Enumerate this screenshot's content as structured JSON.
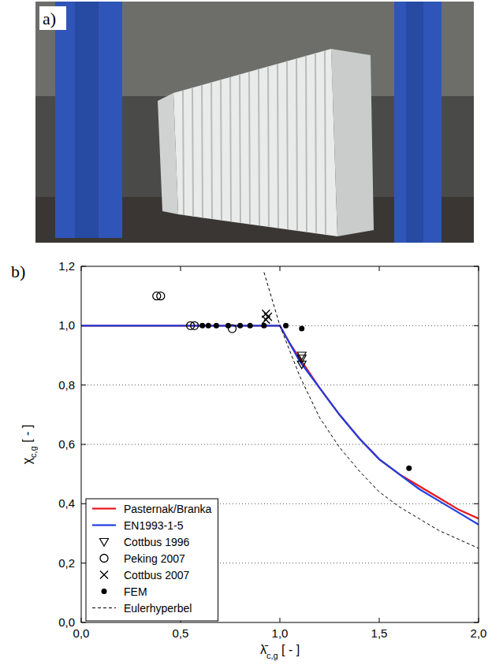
{
  "panel_labels": [
    "a)",
    "b)"
  ],
  "chart_data": {
    "type": "line",
    "xlabel": [
      "λ̄",
      "c,g",
      " [ - ]"
    ],
    "ylabel": [
      "χ",
      "c,g",
      " [ - ]"
    ],
    "xlim": [
      0,
      2
    ],
    "ylim": [
      0,
      1.2
    ],
    "xticks": [
      {
        "value": 0,
        "label": "0,0"
      },
      {
        "value": 0.5,
        "label": "0,5"
      },
      {
        "value": 1,
        "label": "1,0"
      },
      {
        "value": 1.5,
        "label": "1,5"
      },
      {
        "value": 2,
        "label": "2,0"
      }
    ],
    "yticks": [
      {
        "value": 0,
        "label": "0,0"
      },
      {
        "value": 0.2,
        "label": "0,2"
      },
      {
        "value": 0.4,
        "label": "0,4"
      },
      {
        "value": 0.6,
        "label": "0,6"
      },
      {
        "value": 0.8,
        "label": "0,8"
      },
      {
        "value": 1,
        "label": "1,0"
      },
      {
        "value": 1.2,
        "label": "1,2"
      }
    ],
    "grid": true,
    "legend": "lower left",
    "series": [
      {
        "name": "Pasternak/Branka",
        "type": "line",
        "color": "#e8141c",
        "line_style": "solid",
        "x": [
          0,
          1.0,
          1.05,
          1.1,
          1.2,
          1.3,
          1.4,
          1.5,
          1.6,
          1.7,
          1.8,
          1.9,
          2.0
        ],
        "values": [
          1,
          1,
          0.94,
          0.89,
          0.79,
          0.7,
          0.62,
          0.55,
          0.5,
          0.46,
          0.42,
          0.38,
          0.35
        ]
      },
      {
        "name": "EN1993-1-5",
        "type": "line",
        "color": "#1f3fe0",
        "line_style": "solid",
        "x": [
          0,
          1.0,
          1.05,
          1.1,
          1.2,
          1.3,
          1.4,
          1.5,
          1.6,
          1.7,
          1.8,
          1.9,
          2.0
        ],
        "values": [
          1,
          1,
          0.94,
          0.88,
          0.79,
          0.7,
          0.62,
          0.55,
          0.5,
          0.45,
          0.41,
          0.37,
          0.33
        ]
      },
      {
        "name": "Cottbus 1996",
        "type": "scatter",
        "color": "#000000",
        "marker": "triangle-down",
        "x": [
          1.11,
          1.11,
          1.11
        ],
        "values": [
          0.9,
          0.89,
          0.87
        ]
      },
      {
        "name": "Peking 2007",
        "type": "scatter",
        "color": "#000000",
        "marker": "circle",
        "x": [
          0.38,
          0.4,
          0.55,
          0.57,
          0.76
        ],
        "values": [
          1.1,
          1.1,
          1.0,
          1.0,
          0.99
        ]
      },
      {
        "name": "Cottbus 2007",
        "type": "scatter",
        "color": "#000000",
        "marker": "x",
        "x": [
          0.93,
          0.93,
          0.94
        ],
        "values": [
          1.04,
          1.02,
          1.03
        ]
      },
      {
        "name": "FEM",
        "type": "scatter",
        "color": "#000000",
        "marker": "dot",
        "x": [
          0.61,
          0.64,
          0.68,
          0.74,
          0.8,
          0.85,
          0.92,
          1.03,
          1.11,
          1.65
        ],
        "values": [
          1.0,
          1.0,
          1.0,
          1.0,
          1.0,
          1.0,
          1.0,
          1.0,
          0.99,
          0.52
        ]
      },
      {
        "name": "Eulerhyperbel",
        "type": "line",
        "color": "#000000",
        "line_style": "dashed",
        "x": [
          0.92,
          1.0,
          1.1,
          1.2,
          1.3,
          1.4,
          1.5,
          1.6,
          1.7,
          1.8,
          1.9,
          2.0
        ],
        "values": [
          1.18,
          1.0,
          0.83,
          0.69,
          0.59,
          0.51,
          0.44,
          0.39,
          0.35,
          0.31,
          0.28,
          0.25
        ]
      }
    ]
  }
}
